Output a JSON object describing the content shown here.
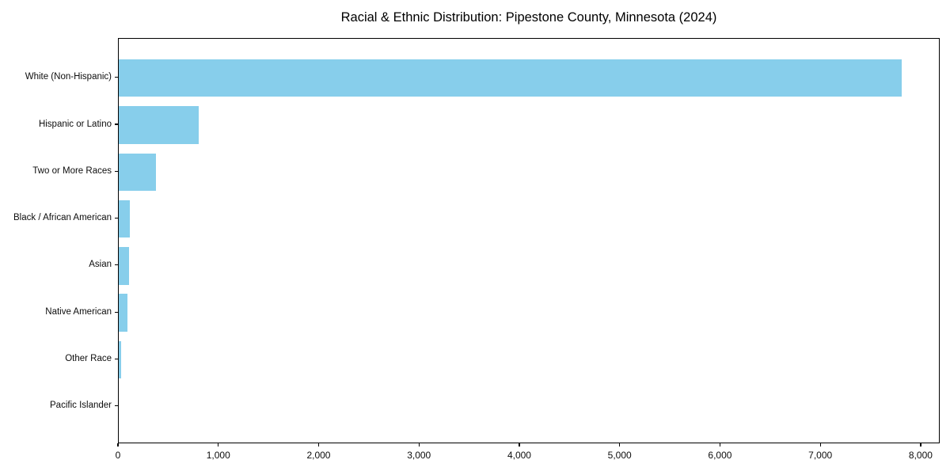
{
  "chart_data": {
    "type": "bar",
    "orientation": "horizontal",
    "title": "Racial & Ethnic Distribution: Pipestone County, Minnesota (2024)",
    "categories": [
      "White (Non-Hispanic)",
      "Hispanic or Latino",
      "Two or More Races",
      "Black / African American",
      "Asian",
      "Native American",
      "Other Race",
      "Pacific Islander"
    ],
    "values": [
      7800,
      800,
      370,
      110,
      100,
      90,
      20,
      0
    ],
    "xlabel": "",
    "ylabel": "",
    "xlim": [
      0,
      8190
    ],
    "x_ticks": [
      0,
      1000,
      2000,
      3000,
      4000,
      5000,
      6000,
      7000,
      8000
    ],
    "x_tick_labels": [
      "0",
      "1,000",
      "2,000",
      "3,000",
      "4,000",
      "5,000",
      "6,000",
      "7,000",
      "8,000"
    ],
    "bar_color": "#87CEEB",
    "spine_color": "#000000",
    "text_color": "#0d0d0d",
    "background_color": "#ffffff",
    "grid": false,
    "legend": null
  }
}
